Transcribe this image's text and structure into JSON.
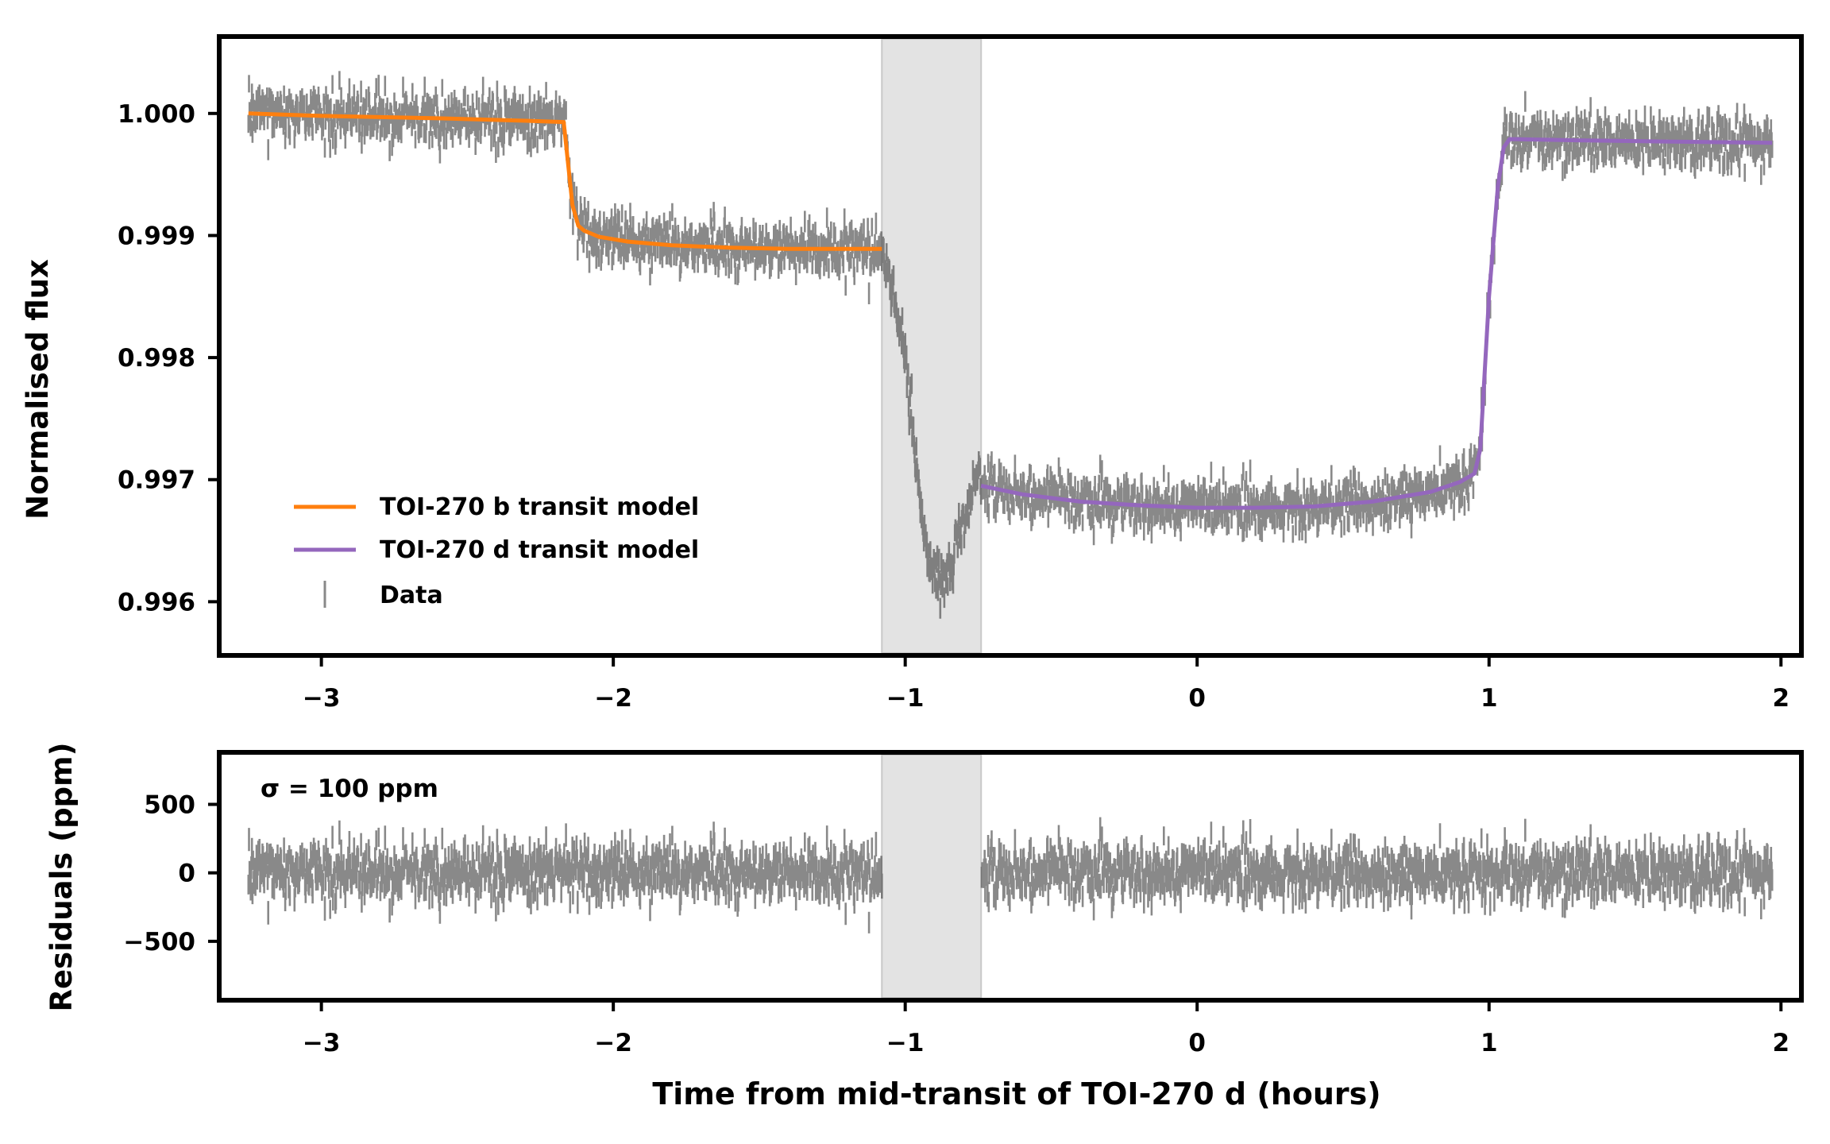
{
  "chart_data": [
    {
      "type": "line",
      "panel": "top",
      "title": "",
      "xlabel": "",
      "ylabel": "Normalised flux",
      "xlim": [
        -3.35,
        2.07
      ],
      "ylim": [
        0.99556,
        1.00063
      ],
      "xticks": [
        -3,
        -2,
        -1,
        0,
        1,
        2
      ],
      "xtick_labels": [
        "−3",
        "−2",
        "−1",
        "0",
        "1",
        "2"
      ],
      "yticks": [
        0.996,
        0.997,
        0.998,
        0.999,
        1.0
      ],
      "ytick_labels": [
        "0.996",
        "0.997",
        "0.998",
        "0.999",
        "1.000"
      ],
      "shaded_region": {
        "x": [
          -1.08,
          -0.74
        ],
        "color": "#d9d9d9"
      },
      "series": [
        {
          "name": "TOI-270 b transit model",
          "color": "#ff7f0e",
          "x": [
            -3.25,
            -3.0,
            -2.6,
            -2.3,
            -2.17,
            -2.14,
            -2.12,
            -2.1,
            -2.05,
            -1.95,
            -1.8,
            -1.6,
            -1.4,
            -1.2,
            -1.08
          ],
          "y": [
            1.0,
            0.99998,
            0.99996,
            0.99994,
            0.99993,
            0.99925,
            0.99908,
            0.99904,
            0.99899,
            0.99895,
            0.99892,
            0.9989,
            0.99889,
            0.99889,
            0.99889
          ]
        },
        {
          "name": "TOI-270 d transit model",
          "color": "#9467bd",
          "x": [
            -0.74,
            -0.6,
            -0.4,
            -0.2,
            0.0,
            0.2,
            0.4,
            0.6,
            0.8,
            0.9,
            0.95,
            0.97,
            1.0,
            1.03,
            1.05,
            1.07,
            1.3,
            1.6,
            1.97
          ],
          "y": [
            0.99695,
            0.99688,
            0.99682,
            0.99679,
            0.99677,
            0.99677,
            0.99678,
            0.99682,
            0.9969,
            0.99698,
            0.99705,
            0.99725,
            0.9985,
            0.9994,
            0.99972,
            0.99979,
            0.99978,
            0.99977,
            0.99976
          ]
        }
      ],
      "data_series": {
        "name": "Data",
        "color": "#444444",
        "x_range": [
          -3.25,
          1.97
        ],
        "cadence_hours": 0.002,
        "errorbar_ppm": 80,
        "scatter_ppm": 100,
        "gap_shape": {
          "x": [
            -1.08,
            -1.04,
            -1.0,
            -0.97,
            -0.94,
            -0.91,
            -0.88,
            -0.85,
            -0.82,
            -0.79,
            -0.76,
            -0.74
          ],
          "y": [
            0.99893,
            0.99855,
            0.998,
            0.9973,
            0.99658,
            0.99628,
            0.9962,
            0.99625,
            0.99648,
            0.99678,
            0.99698,
            0.99702
          ]
        }
      },
      "legend": {
        "placement": "lower-left",
        "entries": [
          "TOI-270 b transit model",
          "TOI-270 d transit model",
          "Data"
        ]
      }
    },
    {
      "type": "scatter",
      "panel": "bottom",
      "title": "",
      "xlabel": "Time from mid-transit of TOI-270 d (hours)",
      "ylabel": "Residuals (ppm)",
      "xlim": [
        -3.35,
        2.07
      ],
      "ylim": [
        -930,
        880
      ],
      "xticks": [
        -3,
        -2,
        -1,
        0,
        1,
        2
      ],
      "xtick_labels": [
        "−3",
        "−2",
        "−1",
        "0",
        "1",
        "2"
      ],
      "yticks": [
        -500,
        0,
        500
      ],
      "ytick_labels": [
        "−500",
        "0",
        "500"
      ],
      "shaded_region": {
        "x": [
          -1.08,
          -0.74
        ],
        "color": "#d9d9d9"
      },
      "masked_interval": [
        -1.08,
        -0.74
      ],
      "annotation": "σ = 100 ppm",
      "residual_sigma_ppm": 100,
      "errorbar_ppm": 80,
      "color": "#444444"
    }
  ]
}
